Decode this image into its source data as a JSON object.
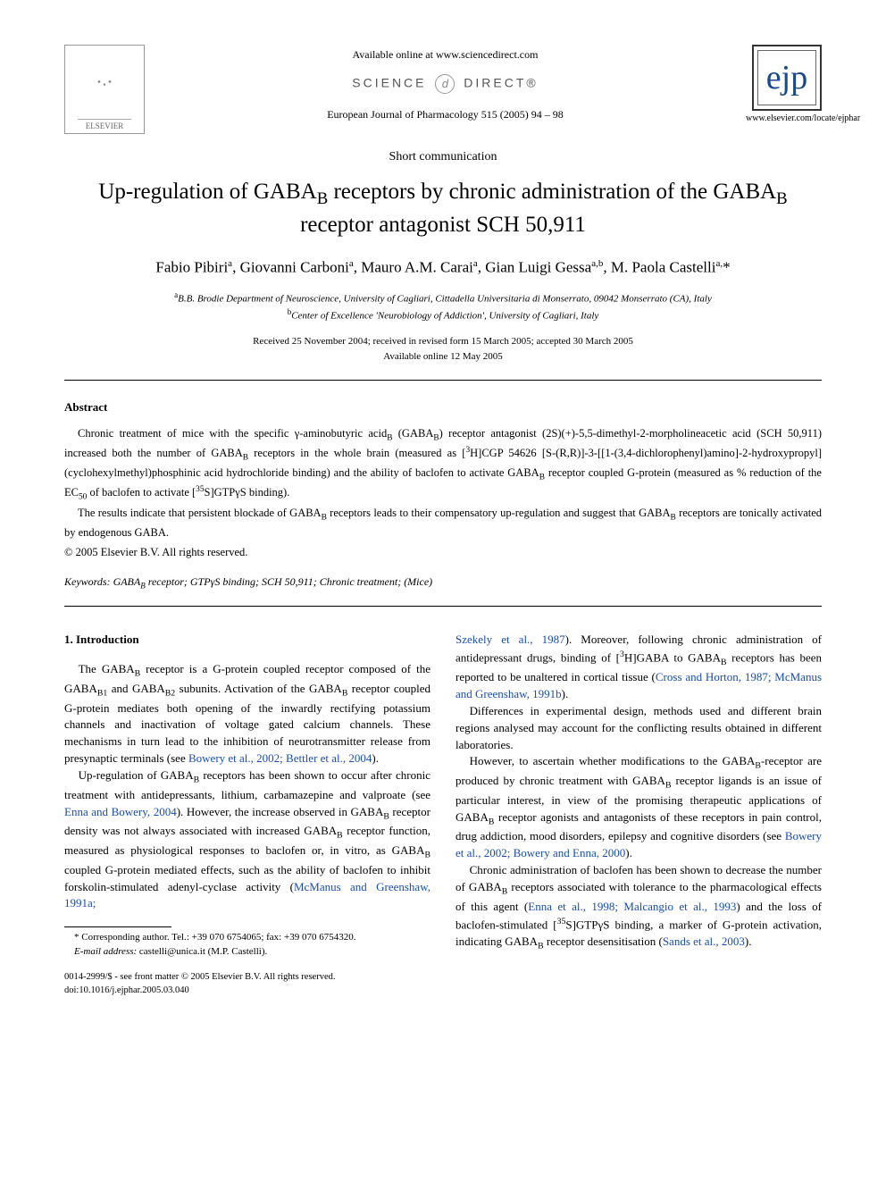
{
  "header": {
    "available_online": "Available online at www.sciencedirect.com",
    "science_direct_left": "SCIENCE",
    "science_direct_right": "DIRECT®",
    "journal_ref": "European Journal of Pharmacology 515 (2005) 94 – 98",
    "elsevier_label": "ELSEVIER",
    "ejp_text": "ejp",
    "journal_url": "www.elsevier.com/locate/ejphar"
  },
  "doc_type": "Short communication",
  "title_line1": "Up-regulation of GABA",
  "title_sub1": "B",
  "title_mid": " receptors by chronic administration of the GABA",
  "title_sub2": "B",
  "title_end": " receptor antagonist SCH 50,911",
  "authors_html": "Fabio Pibiri<sup>a</sup>, Giovanni Carboni<sup>a</sup>, Mauro A.M. Carai<sup>a</sup>, Gian Luigi Gessa<sup>a,b</sup>, M. Paola Castelli<sup>a,</sup>*",
  "affiliations": {
    "a": "B.B. Brodie Department of Neuroscience, University of Cagliari, Cittadella Universitaria di Monserrato, 09042 Monserrato (CA), Italy",
    "b": "Center of Excellence 'Neurobiology of Addiction', University of Cagliari, Italy"
  },
  "dates": {
    "received": "Received 25 November 2004; received in revised form 15 March 2005; accepted 30 March 2005",
    "available": "Available online 12 May 2005"
  },
  "abstract": {
    "heading": "Abstract",
    "p1": "Chronic treatment of mice with the specific γ-aminobutyric acidB (GABAB) receptor antagonist (2S)(+)-5,5-dimethyl-2-morpholineacetic acid (SCH 50,911) increased both the number of GABAB receptors in the whole brain (measured as [3H]CGP 54626 [S-(R,R)]-3-[[1-(3,4-dichlorophenyl)amino]-2-hydroxypropyl](cyclohexylmethyl)phosphinic acid hydrochloride binding) and the ability of baclofen to activate GABAB receptor coupled G-protein (measured as % reduction of the EC50 of baclofen to activate [35S]GTPγS binding).",
    "p2": "The results indicate that persistent blockade of GABAB receptors leads to their compensatory up-regulation and suggest that GABAB receptors are tonically activated by endogenous GABA.",
    "copyright": "© 2005 Elsevier B.V. All rights reserved."
  },
  "keywords": {
    "label": "Keywords:",
    "text": " GABAB receptor; GTPγS binding; SCH 50,911; Chronic treatment; (Mice)"
  },
  "section1": {
    "heading": "1. Introduction",
    "left": {
      "p1a": "The GABA",
      "p1b": " receptor is a G-protein coupled receptor composed of the GABA",
      "p1c": " and GABA",
      "p1d": " subunits. Activation of the GABA",
      "p1e": " receptor coupled G-protein mediates both opening of the inwardly rectifying potassium channels and inactivation of voltage gated calcium channels. These mechanisms in turn lead to the inhibition of neurotransmitter release from presynaptic terminals (see ",
      "p1_ref1": "Bowery et al., 2002; Bettler et al., 2004",
      "p1f": ").",
      "p2a": "Up-regulation of GABA",
      "p2b": " receptors has been shown to occur after chronic treatment with antidepressants, lithium, carbamazepine and valproate (see ",
      "p2_ref1": "Enna and Bowery, 2004",
      "p2c": "). However, the increase observed in GABA",
      "p2d": " receptor density was not always associated with increased GABA",
      "p2e": " receptor function, measured as physiological responses to baclofen or, in vitro, as GABA",
      "p2f": " coupled G-protein mediated effects, such as the ability of baclofen to inhibit forskolin-stimulated adenyl-cyclase activity (",
      "p2_ref2": "McManus and Greenshaw, 1991a;"
    },
    "right": {
      "p1_ref1": "Szekely et al., 1987",
      "p1a": "). Moreover, following chronic administration of antidepressant drugs, binding of [",
      "p1b": "H]GABA to GABA",
      "p1c": " receptors has been reported to be unaltered in cortical tissue (",
      "p1_ref2": "Cross and Horton, 1987; McManus and Greenshaw, 1991b",
      "p1d": ").",
      "p2": "Differences in experimental design, methods used and different brain regions analysed may account for the conflicting results obtained in different laboratories.",
      "p3a": "However, to ascertain whether modifications to the GABA",
      "p3b": "-receptor are produced by chronic treatment with GABA",
      "p3c": " receptor ligands is an issue of particular interest, in view of the promising therapeutic applications of GABA",
      "p3d": " receptor agonists and antagonists of these receptors in pain control, drug addiction, mood disorders, epilepsy and cognitive disorders (see ",
      "p3_ref1": "Bowery et al., 2002; Bowery and Enna, 2000",
      "p3e": ").",
      "p4a": "Chronic administration of baclofen has been shown to decrease the number of GABA",
      "p4b": " receptors associated with tolerance to the pharmacological effects of this agent (",
      "p4_ref1": "Enna et al., 1998; Malcangio et al., 1993",
      "p4c": ") and the loss of baclofen-stimulated [",
      "p4d": "S]GTPγS binding, a marker of G-protein activation, indicating GABA",
      "p4e": " receptor desensitisation (",
      "p4_ref2": "Sands et al., 2003",
      "p4f": ")."
    }
  },
  "footnotes": {
    "corr": "* Corresponding author. Tel.: +39 070 6754065; fax: +39 070 6754320.",
    "email_label": "E-mail address:",
    "email": " castelli@unica.it (M.P. Castelli)."
  },
  "footer": {
    "line1": "0014-2999/$ - see front matter © 2005 Elsevier B.V. All rights reserved.",
    "line2": "doi:10.1016/j.ejphar.2005.03.040"
  },
  "colors": {
    "link": "#1a4db3",
    "ejp": "#1a4a8a",
    "text": "#000000",
    "background": "#ffffff"
  }
}
